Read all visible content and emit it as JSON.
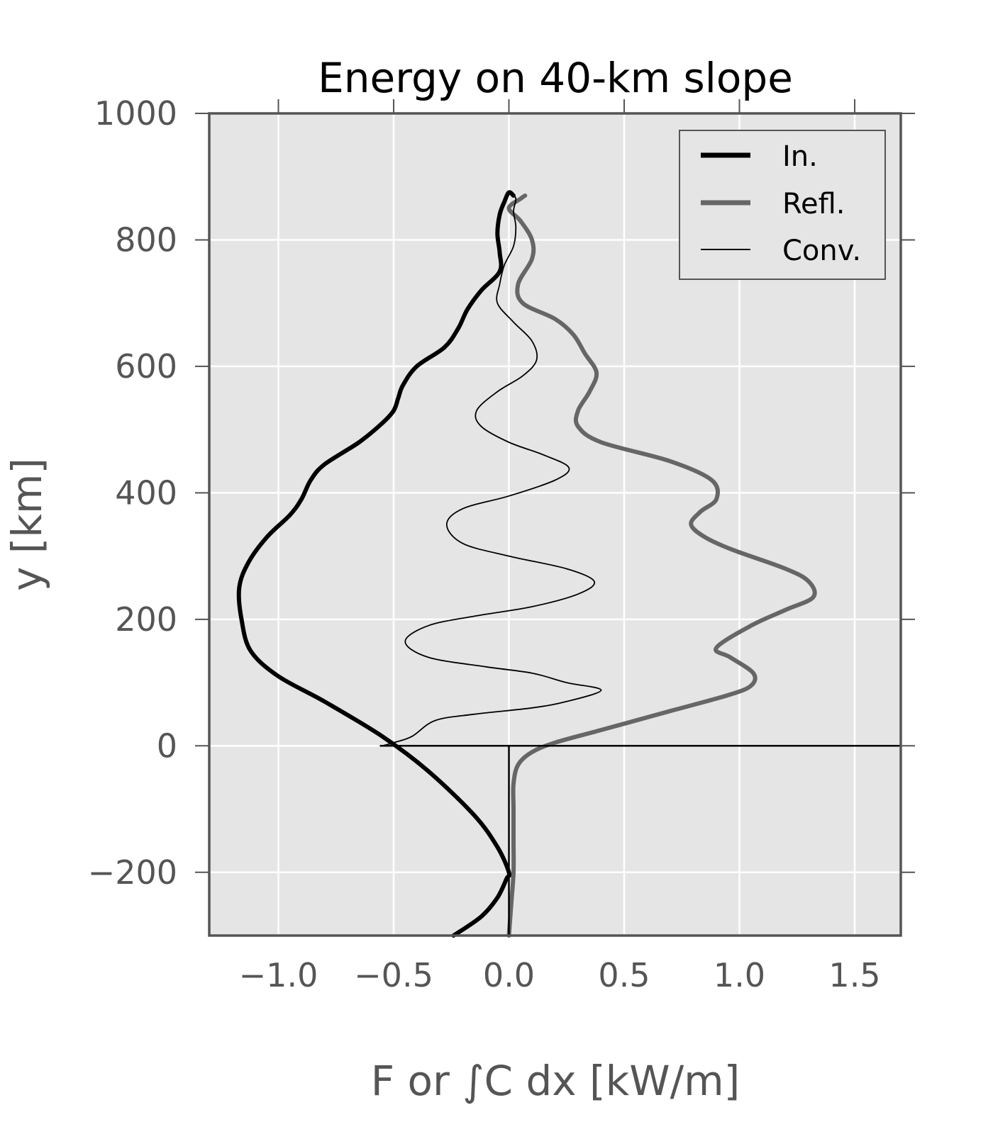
{
  "chart_data": {
    "type": "line",
    "title": "Energy on 40-km slope",
    "xlabel": "F or ∫C dx [kW/m]",
    "ylabel": "y [km]",
    "xlim": [
      -1.3,
      1.7
    ],
    "ylim": [
      -300,
      1000
    ],
    "xticks": [
      -1.0,
      -0.5,
      0.0,
      0.5,
      1.0,
      1.5
    ],
    "xtick_labels": [
      "−1.0",
      "−0.5",
      "0.0",
      "0.5",
      "1.0",
      "1.5"
    ],
    "yticks": [
      -200,
      0,
      200,
      400,
      600,
      800,
      1000
    ],
    "ytick_labels": [
      "−200",
      "0",
      "200",
      "400",
      "600",
      "800",
      "1000"
    ],
    "grid": true,
    "legend_position": "top-right",
    "colors": {
      "in": "#000000",
      "refl": "#666666",
      "conv": "#000000",
      "plot_bg": "#e5e5e5",
      "frame": "#555555"
    },
    "series": [
      {
        "name": "In.",
        "points": [
          [
            -0.24,
            -300
          ],
          [
            -0.12,
            -270
          ],
          [
            -0.05,
            -240
          ],
          [
            -0.01,
            -210
          ],
          [
            0.0,
            -200
          ],
          [
            -0.05,
            -160
          ],
          [
            -0.15,
            -110
          ],
          [
            -0.35,
            -40
          ],
          [
            -0.55,
            15
          ],
          [
            -0.8,
            70
          ],
          [
            -1.0,
            110
          ],
          [
            -1.12,
            150
          ],
          [
            -1.16,
            200
          ],
          [
            -1.17,
            250
          ],
          [
            -1.13,
            290
          ],
          [
            -1.05,
            330
          ],
          [
            -0.95,
            365
          ],
          [
            -0.9,
            390
          ],
          [
            -0.86,
            420
          ],
          [
            -0.8,
            445
          ],
          [
            -0.65,
            480
          ],
          [
            -0.55,
            510
          ],
          [
            -0.5,
            530
          ],
          [
            -0.48,
            550
          ],
          [
            -0.46,
            570
          ],
          [
            -0.4,
            600
          ],
          [
            -0.28,
            630
          ],
          [
            -0.22,
            660
          ],
          [
            -0.18,
            690
          ],
          [
            -0.12,
            720
          ],
          [
            -0.04,
            750
          ],
          [
            -0.04,
            780
          ],
          [
            -0.05,
            810
          ],
          [
            -0.04,
            840
          ],
          [
            -0.02,
            860
          ],
          [
            0.0,
            875
          ],
          [
            0.02,
            870
          ]
        ]
      },
      {
        "name": "Refl.",
        "points": [
          [
            0.0,
            -300
          ],
          [
            0.01,
            -250
          ],
          [
            0.02,
            -200
          ],
          [
            0.02,
            -150
          ],
          [
            0.02,
            -100
          ],
          [
            0.02,
            -60
          ],
          [
            0.04,
            -30
          ],
          [
            0.1,
            -10
          ],
          [
            0.2,
            5
          ],
          [
            0.4,
            25
          ],
          [
            0.7,
            55
          ],
          [
            0.95,
            80
          ],
          [
            1.05,
            95
          ],
          [
            1.06,
            115
          ],
          [
            0.96,
            140
          ],
          [
            0.9,
            155
          ],
          [
            1.05,
            190
          ],
          [
            1.2,
            215
          ],
          [
            1.32,
            235
          ],
          [
            1.3,
            260
          ],
          [
            1.2,
            280
          ],
          [
            0.97,
            310
          ],
          [
            0.85,
            330
          ],
          [
            0.79,
            350
          ],
          [
            0.83,
            370
          ],
          [
            0.9,
            390
          ],
          [
            0.88,
            420
          ],
          [
            0.7,
            450
          ],
          [
            0.4,
            480
          ],
          [
            0.3,
            505
          ],
          [
            0.3,
            530
          ],
          [
            0.35,
            560
          ],
          [
            0.38,
            590
          ],
          [
            0.33,
            620
          ],
          [
            0.28,
            650
          ],
          [
            0.2,
            675
          ],
          [
            0.06,
            700
          ],
          [
            0.04,
            730
          ],
          [
            0.1,
            770
          ],
          [
            0.1,
            800
          ],
          [
            0.05,
            830
          ],
          [
            0.0,
            850
          ],
          [
            0.05,
            865
          ],
          [
            0.07,
            870
          ]
        ]
      },
      {
        "name": "Conv.",
        "points": [
          [
            -0.55,
            0
          ],
          [
            -0.5,
            5
          ],
          [
            -0.42,
            15
          ],
          [
            -0.32,
            40
          ],
          [
            -0.15,
            50
          ],
          [
            0.1,
            60
          ],
          [
            0.25,
            70
          ],
          [
            0.4,
            88
          ],
          [
            0.25,
            100
          ],
          [
            0.1,
            115
          ],
          [
            -0.1,
            125
          ],
          [
            -0.35,
            140
          ],
          [
            -0.45,
            165
          ],
          [
            -0.35,
            190
          ],
          [
            -0.15,
            205
          ],
          [
            0.1,
            220
          ],
          [
            0.3,
            240
          ],
          [
            0.37,
            260
          ],
          [
            0.25,
            280
          ],
          [
            0.0,
            300
          ],
          [
            -0.2,
            320
          ],
          [
            -0.27,
            350
          ],
          [
            -0.2,
            375
          ],
          [
            0.0,
            395
          ],
          [
            0.2,
            420
          ],
          [
            0.26,
            440
          ],
          [
            0.15,
            460
          ],
          [
            0.0,
            480
          ],
          [
            -0.12,
            505
          ],
          [
            -0.14,
            530
          ],
          [
            -0.05,
            560
          ],
          [
            0.06,
            585
          ],
          [
            0.12,
            610
          ],
          [
            0.1,
            640
          ],
          [
            0.02,
            670
          ],
          [
            -0.05,
            700
          ],
          [
            -0.04,
            730
          ],
          [
            -0.02,
            760
          ],
          [
            0.02,
            790
          ],
          [
            0.03,
            820
          ],
          [
            0.02,
            845
          ],
          [
            0.03,
            865
          ],
          [
            0.01,
            875
          ]
        ]
      }
    ],
    "annotations": [
      {
        "type": "hline",
        "y": 0,
        "x_from": 0.0,
        "x_to": 1.7
      },
      {
        "type": "vline",
        "x": 0.0,
        "y_from": -300,
        "y_to": 0
      },
      {
        "type": "hline",
        "y": 0,
        "x_from": -0.56,
        "x_to": 0.0
      }
    ]
  }
}
